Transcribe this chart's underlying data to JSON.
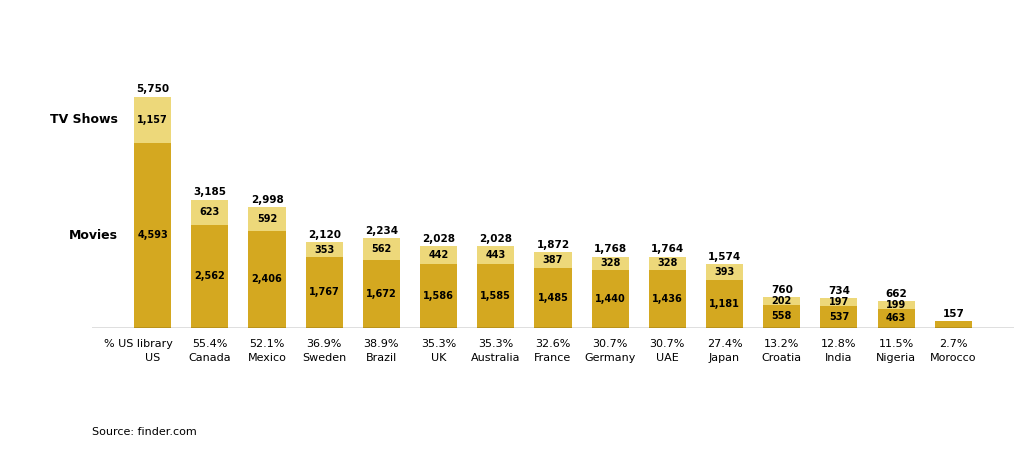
{
  "categories": [
    "US",
    "Canada",
    "Mexico",
    "Sweden",
    "Brazil",
    "UK",
    "Australia",
    "France",
    "Germany",
    "UAE",
    "Japan",
    "Croatia",
    "India",
    "Nigeria",
    "Morocco"
  ],
  "movies": [
    4593,
    2562,
    2406,
    1767,
    1672,
    1586,
    1585,
    1485,
    1440,
    1436,
    1181,
    558,
    537,
    463,
    157
  ],
  "tv_shows": [
    1157,
    623,
    592,
    353,
    562,
    442,
    443,
    387,
    328,
    328,
    393,
    202,
    197,
    199,
    0
  ],
  "totals": [
    5750,
    3185,
    2998,
    2120,
    2234,
    2028,
    2028,
    1872,
    1768,
    1764,
    1574,
    760,
    734,
    662,
    157
  ],
  "pct_us": [
    "",
    "55.4%",
    "52.1%",
    "36.9%",
    "38.9%",
    "35.3%",
    "35.3%",
    "32.6%",
    "30.7%",
    "30.7%",
    "27.4%",
    "13.2%",
    "12.8%",
    "11.5%",
    "2.7%"
  ],
  "color_movies": "#D4A820",
  "color_tvshows": "#EDD87A",
  "background": "#FFFFFF",
  "label_movies": "Movies",
  "label_tvshows": "TV Shows",
  "source_text": "Source: finder.com",
  "bar_width": 0.65
}
